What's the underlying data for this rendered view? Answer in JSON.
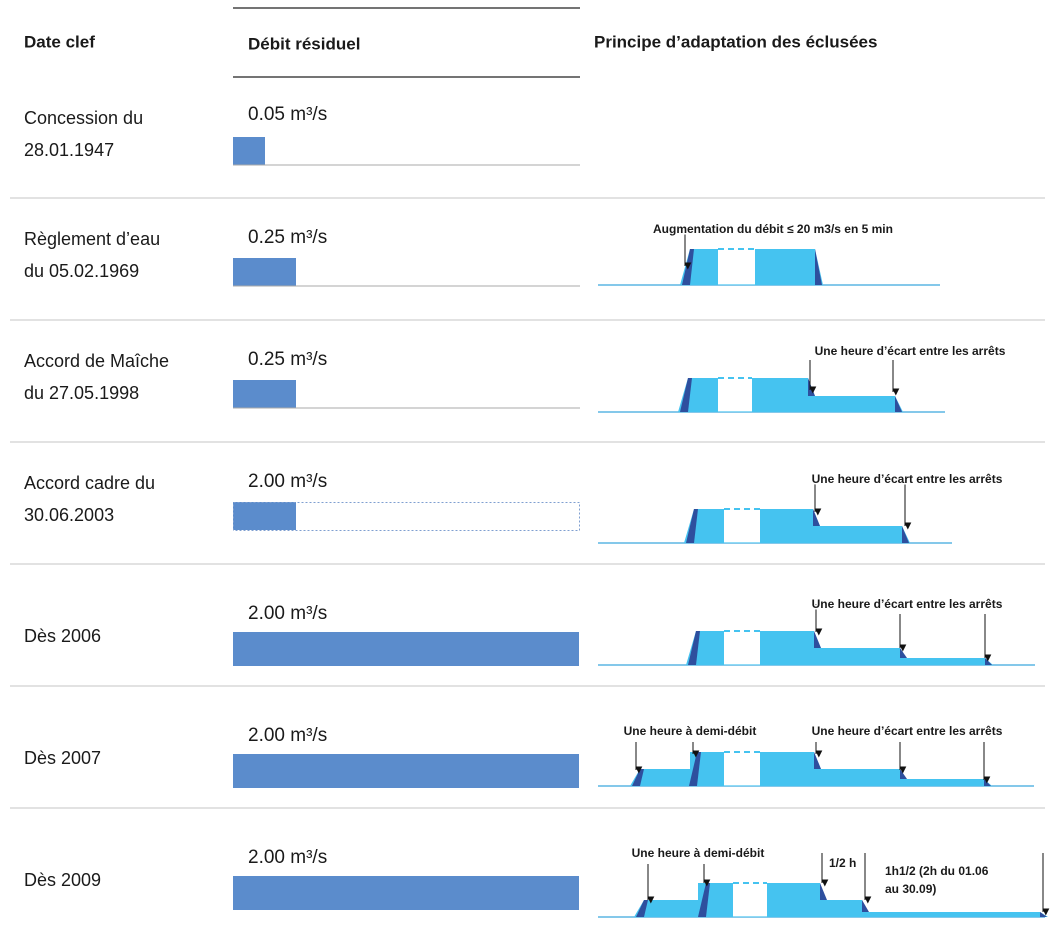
{
  "header": {
    "date": "Date clef",
    "debit": "Débit résiduel",
    "principle": "Principe d’adaptation des éclusées"
  },
  "rows": [
    {
      "date": [
        "Concession du",
        "28.01.1947"
      ],
      "debit": "0.05 m³/s",
      "annotations": []
    },
    {
      "date": [
        "Règlement d’eau",
        "du 05.02.1969"
      ],
      "debit": "0.25 m³/s",
      "annotations": [
        "Augmentation du débit  ≤ 20 m3/s en 5 min"
      ]
    },
    {
      "date": [
        "Accord de Maîche",
        "du 27.05.1998"
      ],
      "debit": "0.25 m³/s",
      "annotations": [
        "Une heure d’écart entre les arrêts"
      ]
    },
    {
      "date": [
        "Accord cadre du",
        "30.06.2003"
      ],
      "debit": "2.00 m³/s",
      "annotations": [
        "Une heure d’écart entre les arrêts"
      ]
    },
    {
      "date": [
        "Dès 2006"
      ],
      "debit": "2.00 m³/s",
      "annotations": [
        "Une heure d’écart entre les arrêts"
      ]
    },
    {
      "date": [
        "Dès 2007"
      ],
      "debit": "2.00 m³/s",
      "annotations": [
        "Une heure à demi-débit",
        "Une heure d’écart entre les arrêts"
      ]
    },
    {
      "date": [
        "Dès 2009"
      ],
      "debit": "2.00 m³/s",
      "annotations": [
        "Une heure à demi-débit",
        "1/2 h",
        "1h1/2 (2h du 01.06",
        "au 30.09)"
      ]
    }
  ]
}
